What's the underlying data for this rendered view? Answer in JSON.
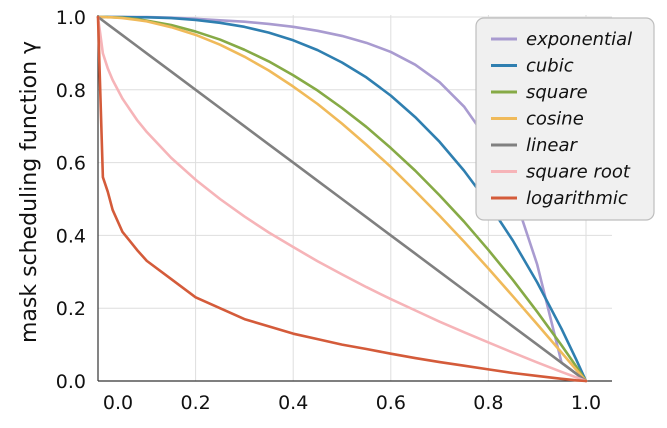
{
  "chart_data": {
    "type": "line",
    "ylabel": "mask scheduling function γ",
    "xlim": [
      0,
      1
    ],
    "ylim": [
      0,
      1
    ],
    "grid": true,
    "legend_placement": "top-right",
    "x_ticks": [
      "0.0",
      "0.2",
      "0.4",
      "0.6",
      "0.8",
      "1.0"
    ],
    "y_ticks": [
      "0.0",
      "0.2",
      "0.4",
      "0.6",
      "0.8",
      "1.0"
    ],
    "x": [
      0,
      0.01,
      0.02,
      0.03,
      0.05,
      0.08,
      0.1,
      0.15,
      0.2,
      0.25,
      0.3,
      0.35,
      0.4,
      0.45,
      0.5,
      0.55,
      0.6,
      0.65,
      0.7,
      0.75,
      0.8,
      0.85,
      0.9,
      0.95,
      0.98,
      1.0
    ],
    "series": [
      {
        "name": "exponential",
        "color": "#a99bd0",
        "values": [
          1.0,
          1.0,
          1.0,
          1.0,
          1.0,
          1.0,
          1.0,
          0.998,
          0.995,
          0.991,
          0.987,
          0.981,
          0.973,
          0.962,
          0.948,
          0.929,
          0.904,
          0.869,
          0.821,
          0.754,
          0.659,
          0.522,
          0.32,
          0.05,
          0.02,
          0.0
        ]
      },
      {
        "name": "cubic",
        "color": "#2f7fb0",
        "values": [
          1.0,
          1.0,
          1.0,
          1.0,
          1.0,
          0.999,
          0.999,
          0.997,
          0.992,
          0.984,
          0.973,
          0.957,
          0.936,
          0.909,
          0.875,
          0.834,
          0.784,
          0.725,
          0.657,
          0.578,
          0.488,
          0.386,
          0.271,
          0.143,
          0.059,
          0.0
        ]
      },
      {
        "name": "square",
        "color": "#86aa46",
        "values": [
          1.0,
          1.0,
          1.0,
          0.999,
          0.998,
          0.994,
          0.99,
          0.978,
          0.96,
          0.938,
          0.91,
          0.878,
          0.84,
          0.798,
          0.75,
          0.698,
          0.64,
          0.578,
          0.51,
          0.438,
          0.36,
          0.278,
          0.19,
          0.098,
          0.04,
          0.0
        ]
      },
      {
        "name": "cosine",
        "color": "#f0ba5a",
        "values": [
          1.0,
          1.0,
          0.999,
          0.999,
          0.997,
          0.992,
          0.988,
          0.972,
          0.951,
          0.924,
          0.891,
          0.853,
          0.809,
          0.761,
          0.707,
          0.649,
          0.588,
          0.522,
          0.454,
          0.383,
          0.309,
          0.233,
          0.156,
          0.078,
          0.031,
          0.0
        ]
      },
      {
        "name": "linear",
        "color": "#808080",
        "values": [
          1.0,
          0.99,
          0.98,
          0.97,
          0.95,
          0.92,
          0.9,
          0.85,
          0.8,
          0.75,
          0.7,
          0.65,
          0.6,
          0.55,
          0.5,
          0.45,
          0.4,
          0.35,
          0.3,
          0.25,
          0.2,
          0.15,
          0.1,
          0.05,
          0.02,
          0.0
        ]
      },
      {
        "name": "square root",
        "color": "#f6b4b8",
        "values": [
          1.0,
          0.9,
          0.859,
          0.827,
          0.776,
          0.717,
          0.684,
          0.613,
          0.553,
          0.5,
          0.452,
          0.408,
          0.368,
          0.329,
          0.293,
          0.258,
          0.225,
          0.194,
          0.163,
          0.134,
          0.106,
          0.078,
          0.051,
          0.025,
          0.01,
          0.0
        ]
      },
      {
        "name": "logarithmic",
        "color": "#d45b3a",
        "values": [
          1.0,
          0.56,
          0.52,
          0.47,
          0.41,
          0.36,
          0.33,
          0.28,
          0.23,
          0.2,
          0.17,
          0.15,
          0.13,
          0.115,
          0.1,
          0.088,
          0.075,
          0.063,
          0.052,
          0.042,
          0.032,
          0.022,
          0.014,
          0.006,
          0.002,
          0.0
        ]
      }
    ]
  }
}
